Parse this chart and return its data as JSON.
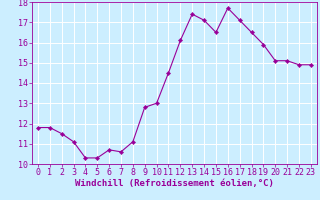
{
  "x": [
    0,
    1,
    2,
    3,
    4,
    5,
    6,
    7,
    8,
    9,
    10,
    11,
    12,
    13,
    14,
    15,
    16,
    17,
    18,
    19,
    20,
    21,
    22,
    23
  ],
  "y": [
    11.8,
    11.8,
    11.5,
    11.1,
    10.3,
    10.3,
    10.7,
    10.6,
    11.1,
    12.8,
    13.0,
    14.5,
    16.1,
    17.4,
    17.1,
    16.5,
    17.7,
    17.1,
    16.5,
    15.9,
    15.1,
    15.1,
    14.9,
    14.9
  ],
  "line_color": "#990099",
  "marker": "D",
  "marker_size": 2.2,
  "bg_color": "#cceeff",
  "grid_color": "#ffffff",
  "xlabel": "Windchill (Refroidissement éolien,°C)",
  "xlabel_color": "#990099",
  "tick_color": "#990099",
  "ylim": [
    10,
    18
  ],
  "xlim": [
    -0.5,
    23.5
  ],
  "yticks": [
    10,
    11,
    12,
    13,
    14,
    15,
    16,
    17,
    18
  ],
  "xticks": [
    0,
    1,
    2,
    3,
    4,
    5,
    6,
    7,
    8,
    9,
    10,
    11,
    12,
    13,
    14,
    15,
    16,
    17,
    18,
    19,
    20,
    21,
    22,
    23
  ],
  "font_size_label": 6.5,
  "font_size_tick": 6.0
}
